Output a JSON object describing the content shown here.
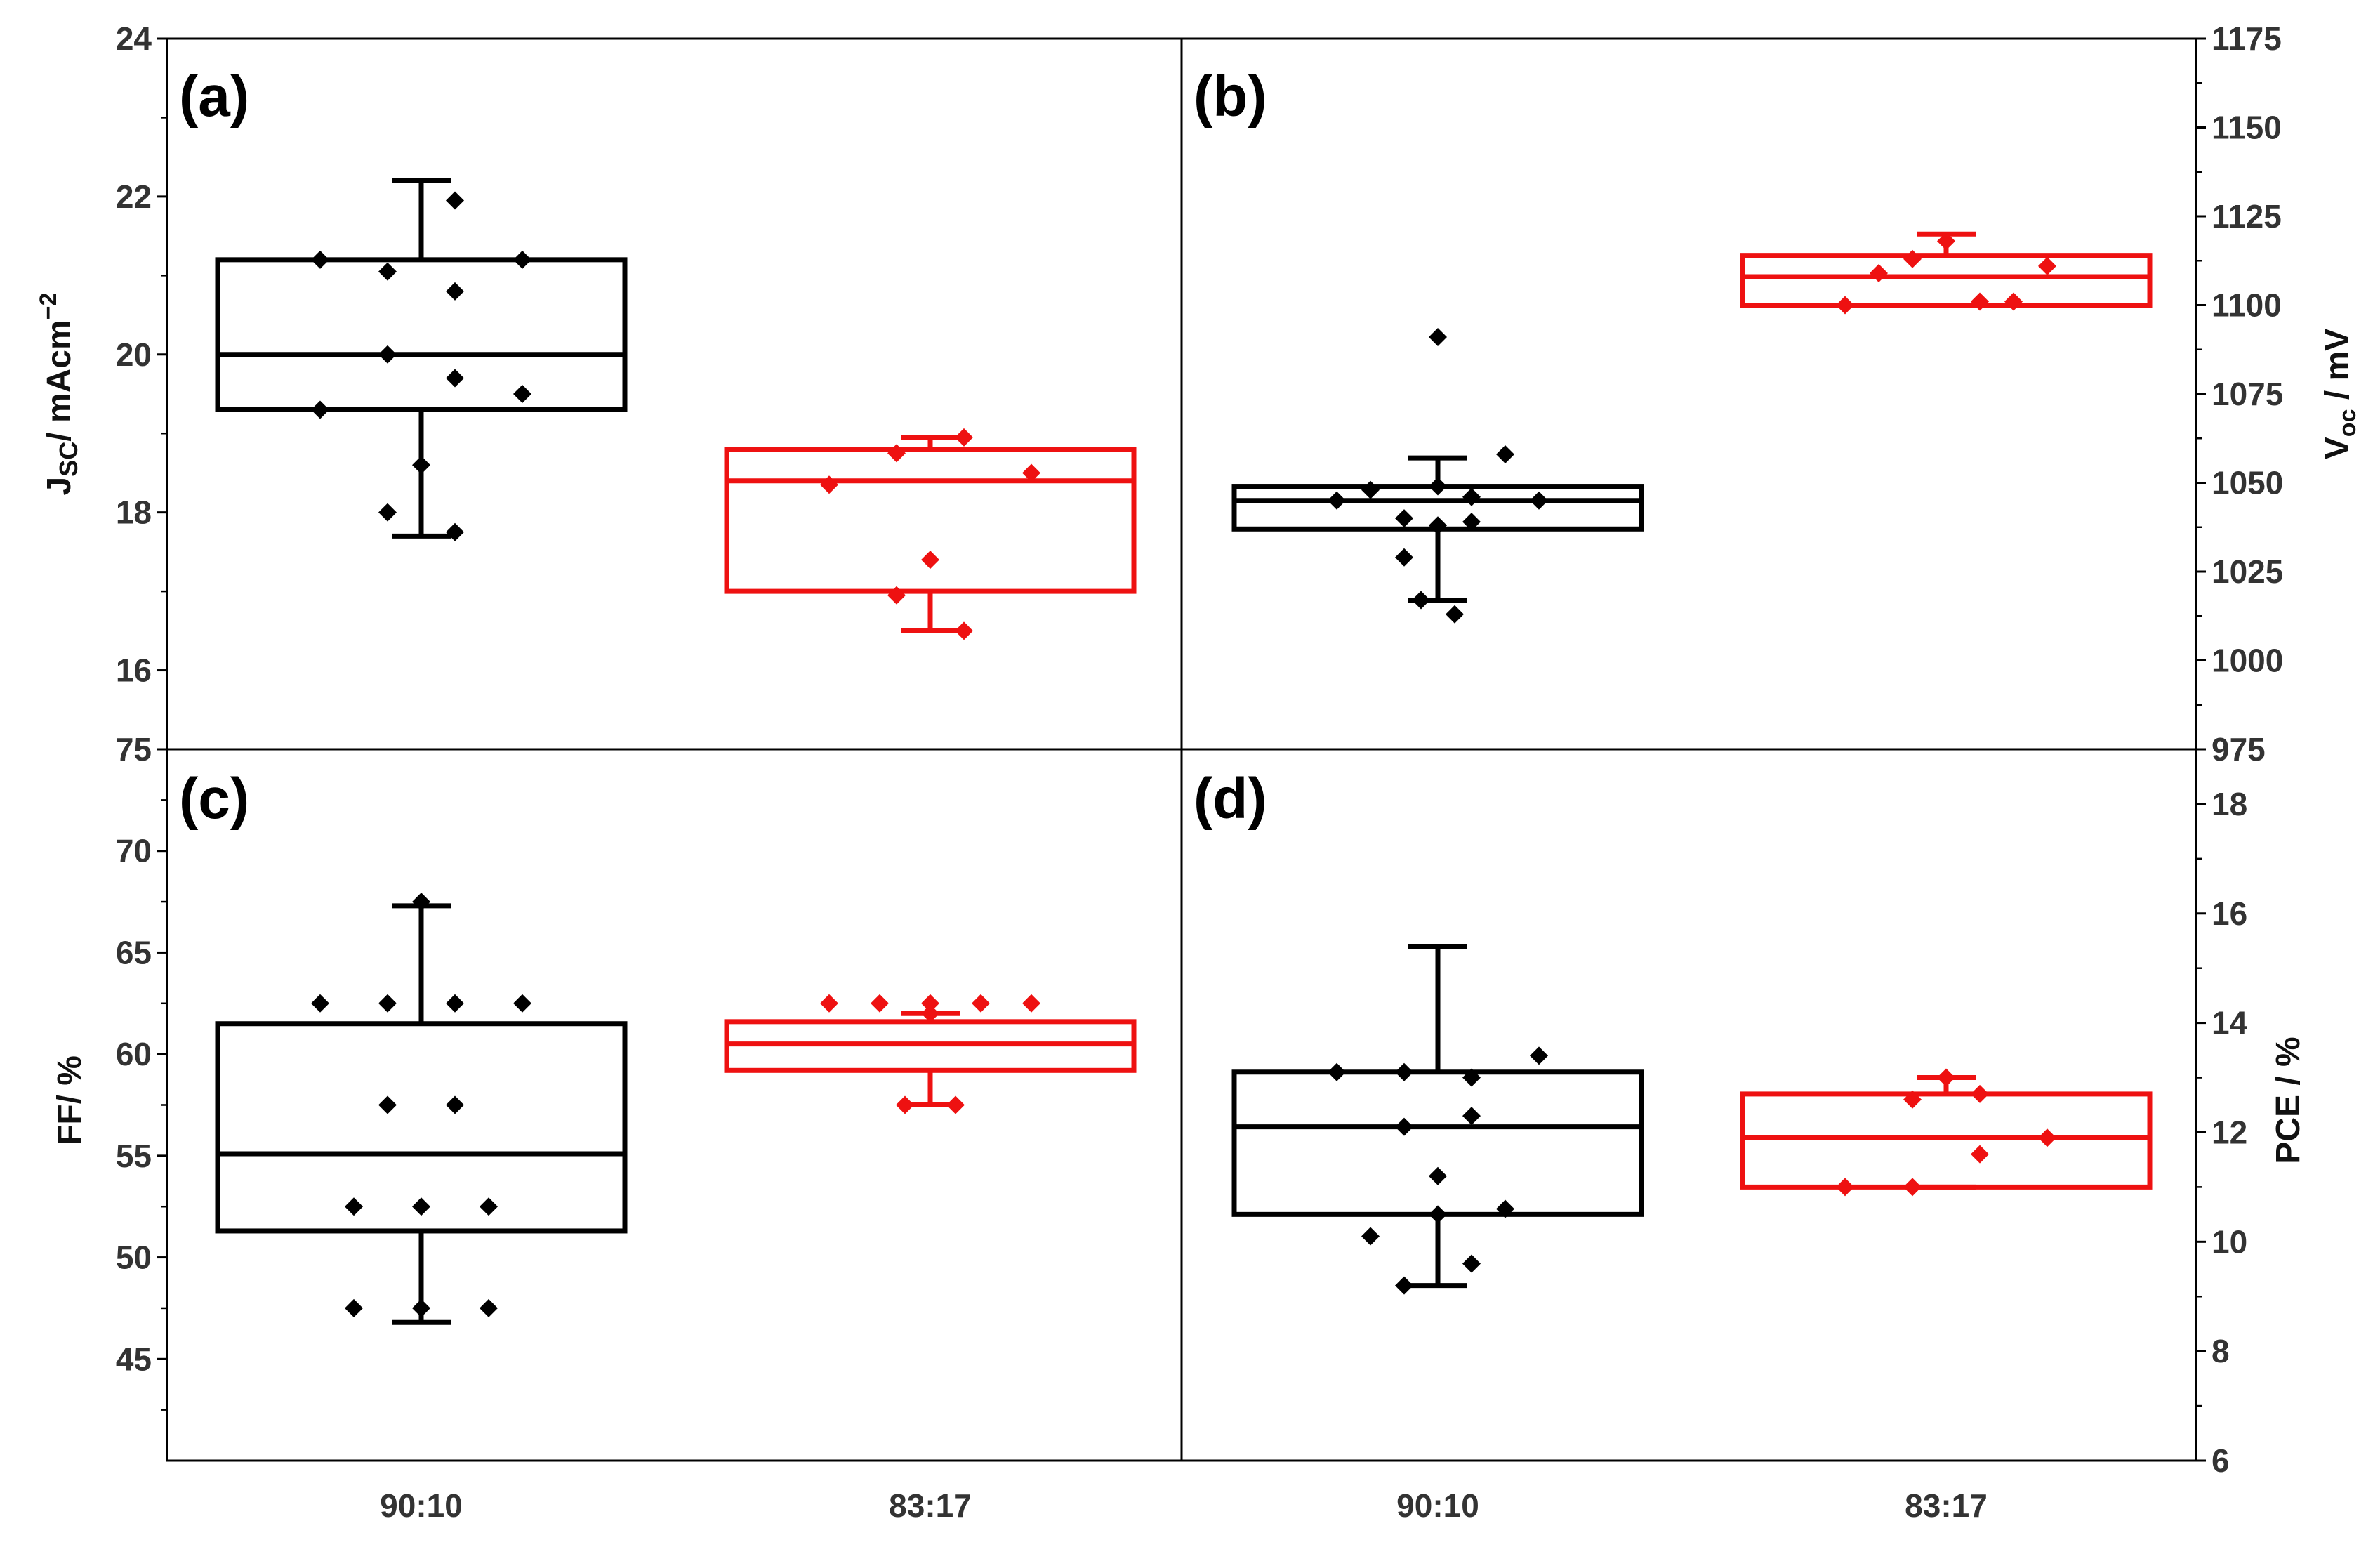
{
  "chart_data": [
    {
      "type": "box",
      "panel": "(a)",
      "ylabel": "Jsc/ mAcm⁻²",
      "ylabel_parts": {
        "main": "J",
        "sub": "SC",
        "rest": "/ mAcm",
        "sup": "−2"
      },
      "ylim": [
        15,
        24
      ],
      "yticks": [
        16,
        18,
        20,
        22,
        24
      ],
      "categories": [
        "90:10",
        "83:17"
      ],
      "series": [
        {
          "name": "90:10",
          "color": "#000000",
          "q1": 19.3,
          "median": 20.0,
          "q3": 21.2,
          "whisker_low": 17.7,
          "whisker_high": 22.2,
          "points": [
            [
              -0.6,
              21.2
            ],
            [
              0.6,
              21.2
            ],
            [
              -0.2,
              21.05
            ],
            [
              0.2,
              20.8
            ],
            [
              0.2,
              21.95
            ],
            [
              -0.6,
              19.3
            ],
            [
              -0.2,
              20.0
            ],
            [
              0.6,
              19.5
            ],
            [
              0.2,
              19.7
            ],
            [
              0,
              18.6
            ],
            [
              -0.2,
              18.0
            ],
            [
              0.2,
              17.75
            ]
          ]
        },
        {
          "name": "83:17",
          "color": "#ee1111",
          "q1": 17.0,
          "median": 18.4,
          "q3": 18.8,
          "whisker_low": 16.5,
          "whisker_high": 18.95,
          "points": [
            [
              -0.6,
              18.35
            ],
            [
              -0.2,
              18.75
            ],
            [
              0.2,
              18.95
            ],
            [
              0.6,
              18.5
            ],
            [
              0,
              17.4
            ],
            [
              -0.2,
              16.95
            ],
            [
              0.2,
              16.5
            ]
          ]
        }
      ]
    },
    {
      "type": "box",
      "panel": "(b)",
      "ylabel": "Voc / mV",
      "ylabel_parts": {
        "main": "V",
        "sub": "oc",
        "rest": " / mV"
      },
      "ylim": [
        975,
        1175
      ],
      "yticks": [
        975,
        1000,
        1025,
        1050,
        1075,
        1100,
        1125,
        1150,
        1175
      ],
      "categories": [
        "90:10",
        "83:17"
      ],
      "series": [
        {
          "name": "90:10",
          "color": "#000000",
          "q1": 1037,
          "median": 1045,
          "q3": 1049,
          "whisker_low": 1017,
          "whisker_high": 1057,
          "points": [
            [
              0,
              1091
            ],
            [
              -0.6,
              1045
            ],
            [
              -0.4,
              1048
            ],
            [
              -0.2,
              1040
            ],
            [
              -0.2,
              1029
            ],
            [
              0,
              1049
            ],
            [
              0,
              1038
            ],
            [
              0.2,
              1046
            ],
            [
              0.2,
              1039
            ],
            [
              0.4,
              1058
            ],
            [
              0.6,
              1045
            ],
            [
              -0.1,
              1017
            ],
            [
              0.1,
              1013
            ]
          ]
        },
        {
          "name": "83:17",
          "color": "#ee1111",
          "q1": 1100,
          "median": 1108,
          "q3": 1114,
          "whisker_low": 1100,
          "whisker_high": 1120,
          "points": [
            [
              -0.6,
              1100
            ],
            [
              -0.4,
              1109
            ],
            [
              -0.2,
              1113
            ],
            [
              0,
              1118
            ],
            [
              0.2,
              1101
            ],
            [
              0.4,
              1101
            ],
            [
              0.6,
              1111
            ]
          ]
        }
      ]
    },
    {
      "type": "box",
      "panel": "(c)",
      "ylabel": "FF/ %",
      "ylim": [
        40,
        75
      ],
      "yticks": [
        45,
        50,
        55,
        60,
        65,
        70,
        75
      ],
      "categories": [
        "90:10",
        "83:17"
      ],
      "series": [
        {
          "name": "90:10",
          "color": "#000000",
          "q1": 51.3,
          "median": 55.1,
          "q3": 61.5,
          "whisker_low": 46.8,
          "whisker_high": 67.3,
          "points": [
            [
              -0.6,
              62.5
            ],
            [
              -0.2,
              62.5
            ],
            [
              0.2,
              62.5
            ],
            [
              0.6,
              62.5
            ],
            [
              0,
              67.5
            ],
            [
              -0.2,
              57.5
            ],
            [
              0.2,
              57.5
            ],
            [
              -0.4,
              52.5
            ],
            [
              0,
              52.5
            ],
            [
              0.4,
              52.5
            ],
            [
              -0.4,
              47.5
            ],
            [
              0,
              47.5
            ],
            [
              0.4,
              47.5
            ]
          ]
        },
        {
          "name": "83:17",
          "color": "#ee1111",
          "q1": 59.2,
          "median": 60.5,
          "q3": 61.6,
          "whisker_low": 57.5,
          "whisker_high": 62.0,
          "points": [
            [
              -0.6,
              62.5
            ],
            [
              -0.3,
              62.5
            ],
            [
              0,
              62.5
            ],
            [
              0.3,
              62.5
            ],
            [
              0.6,
              62.5
            ],
            [
              0,
              62.0
            ],
            [
              -0.15,
              57.5
            ],
            [
              0.15,
              57.5
            ]
          ]
        }
      ]
    },
    {
      "type": "box",
      "panel": "(d)",
      "ylabel": "PCE / %",
      "ylim": [
        6,
        19
      ],
      "yticks": [
        6,
        8,
        10,
        12,
        14,
        16,
        18
      ],
      "categories": [
        "90:10",
        "83:17"
      ],
      "series": [
        {
          "name": "90:10",
          "color": "#000000",
          "q1": 10.5,
          "median": 12.1,
          "q3": 13.1,
          "whisker_low": 9.2,
          "whisker_high": 15.4,
          "points": [
            [
              -0.6,
              13.1
            ],
            [
              -0.2,
              13.1
            ],
            [
              0.2,
              13.0
            ],
            [
              0.6,
              13.4
            ],
            [
              -0.2,
              12.1
            ],
            [
              0.2,
              12.3
            ],
            [
              0,
              11.2
            ],
            [
              -0.4,
              10.1
            ],
            [
              0.4,
              10.6
            ],
            [
              0,
              10.5
            ],
            [
              0.2,
              9.6
            ],
            [
              -0.2,
              9.2
            ]
          ]
        },
        {
          "name": "83:17",
          "color": "#ee1111",
          "q1": 11.0,
          "median": 11.9,
          "q3": 12.7,
          "whisker_low": 11.0,
          "whisker_high": 13.0,
          "points": [
            [
              -0.6,
              11.0
            ],
            [
              -0.2,
              12.6
            ],
            [
              0,
              13.0
            ],
            [
              0.2,
              12.7
            ],
            [
              0.2,
              11.6
            ],
            [
              0.6,
              11.9
            ],
            [
              -0.2,
              11.0
            ]
          ]
        }
      ]
    }
  ]
}
